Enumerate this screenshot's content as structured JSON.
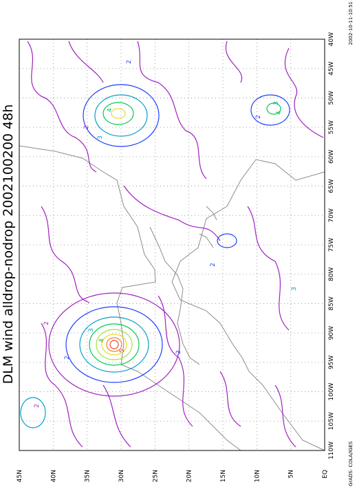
{
  "map": {
    "title": "DLM wind alldrop-nodrop 2002100200 48h",
    "longitude_labels": [
      "40W",
      "45W",
      "50W",
      "55W",
      "60W",
      "65W",
      "70W",
      "75W",
      "80W",
      "85W",
      "90W",
      "95W",
      "100W",
      "105W",
      "110W"
    ],
    "latitude_labels": [
      "EQ",
      "5N",
      "10N",
      "15N",
      "20N",
      "25N",
      "30N",
      "35N",
      "40N",
      "45N"
    ],
    "contour_labels": [
      "2",
      "2",
      "3",
      "4",
      "2",
      "2",
      "3",
      "4",
      "2",
      "3",
      "4",
      "5",
      "2",
      "2",
      "3",
      "2"
    ],
    "footer_left": "GrADS: COLA/IGES",
    "footer_right": "2002-10-11-10:51"
  }
}
